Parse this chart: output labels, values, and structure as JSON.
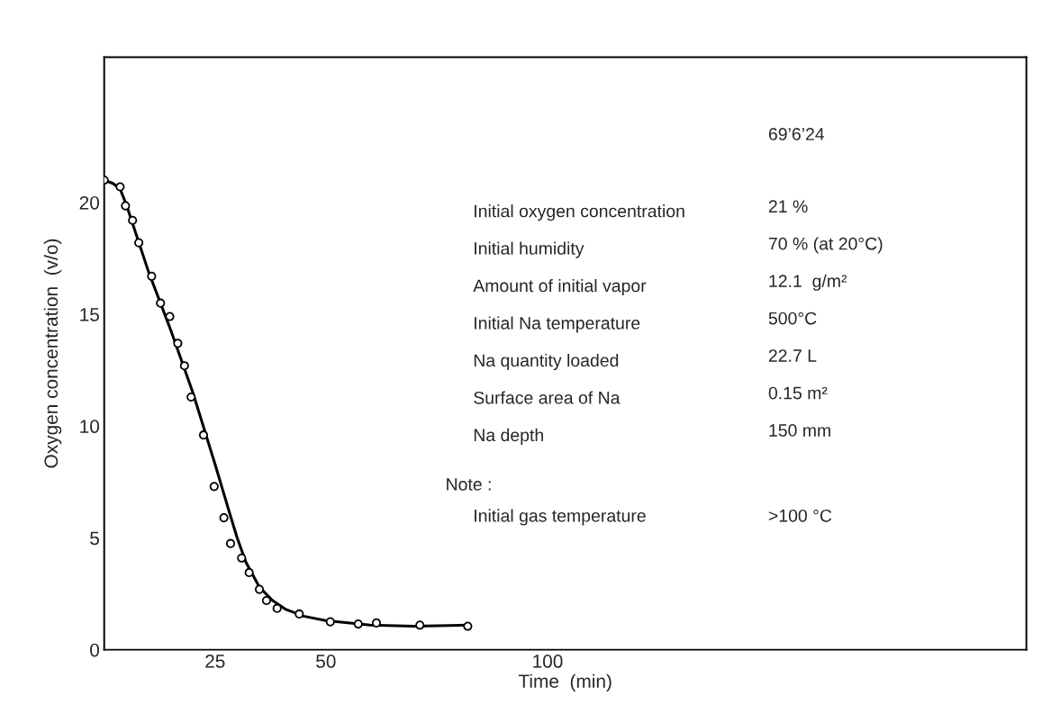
{
  "chart_data": {
    "type": "scatter",
    "xlabel": "Time  (min)",
    "ylabel": "Oxygen concentration  (v/o)",
    "xlim": [
      0,
      208
    ],
    "ylim": [
      0,
      26.5
    ],
    "xticks": [
      25,
      50,
      100
    ],
    "yticks": [
      0,
      5,
      10,
      15,
      20
    ],
    "grid": false,
    "legend": false,
    "series": [
      {
        "marker": "circle",
        "color": "#000000",
        "x": [
          0,
          3.6,
          4.8,
          6.4,
          7.8,
          10.7,
          12.7,
          14.8,
          16.6,
          18.1,
          19.6,
          22.4,
          24.8,
          27.0,
          28.5,
          31.0,
          32.7,
          35.0,
          36.6,
          39.0,
          44.0,
          51.0,
          57.3,
          61.4,
          71.2,
          82.0
        ],
        "values": [
          21.0,
          20.7,
          19.85,
          19.2,
          18.2,
          16.7,
          15.5,
          14.9,
          13.7,
          12.7,
          11.3,
          9.6,
          7.3,
          5.9,
          4.75,
          4.1,
          3.45,
          2.7,
          2.2,
          1.85,
          1.6,
          1.25,
          1.15,
          1.2,
          1.1,
          1.05
        ]
      },
      {
        "type": "line",
        "marker": "none",
        "line_style": "solid",
        "color": "#000000",
        "x": [
          0,
          2,
          3.6,
          5,
          10,
          15,
          20,
          25,
          28,
          30,
          32,
          35,
          38,
          41,
          45,
          50,
          55,
          60,
          70,
          82
        ],
        "values": [
          21.0,
          20.85,
          20.6,
          19.9,
          16.9,
          14.3,
          11.5,
          8.3,
          6.3,
          5.0,
          3.9,
          2.8,
          2.2,
          1.8,
          1.5,
          1.3,
          1.2,
          1.1,
          1.05,
          1.1
        ]
      }
    ],
    "annotations": [
      "69’6’24",
      "Initial oxygen concentration",
      "21 %",
      "Initial humidity",
      "70 % (at 20°C)",
      "Amount of initial vapor",
      "12.1  g/m²",
      "Initial Na temperature",
      "500°C",
      "Na quantity loaded",
      "22.7 L",
      "Surface area of Na",
      "0.15 m²",
      "Na depth",
      "150 mm",
      "Note :",
      "Initial gas temperature",
      ">100 °C"
    ]
  }
}
